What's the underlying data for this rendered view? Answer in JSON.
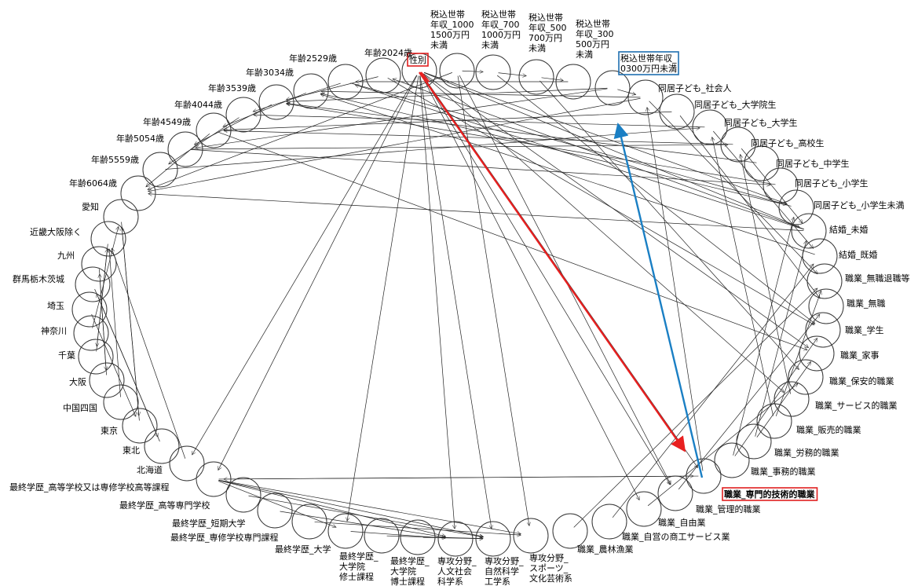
{
  "nodes": {
    "seibetsu": "性別",
    "inc1": [
      "税込世帯",
      "年収_1000",
      "1500万円",
      "未満"
    ],
    "inc2": [
      "税込世帯",
      "年収_700",
      "1000万円",
      "未満"
    ],
    "inc3": [
      "税込世帯",
      "年収_500",
      "700万円",
      "未満"
    ],
    "inc4": [
      "税込世帯",
      "年収_300",
      "500万円",
      "未満"
    ],
    "inc5": [
      "税込世帯年収_",
      "0300万円未満"
    ],
    "age2024": "年齢2024歳",
    "age2529": "年齢2529歳",
    "age3034": "年齢3034歳",
    "age3539": "年齢3539歳",
    "age4044": "年齢4044歳",
    "age4549": "年齢4549歳",
    "age5054": "年齢5054歳",
    "age5559": "年齢5559歳",
    "age6064": "年齢6064歳",
    "aichi": "愛知",
    "kinki": "近畿大阪除く",
    "kyushu": "九州",
    "kitakanto": "群馬栃木茨城",
    "saitama": "埼玉",
    "kanagawa": "神奈川",
    "chiba": "千葉",
    "osaka": "大阪",
    "chugoku": "中国四国",
    "tokyo": "東京",
    "tohoku": "東北",
    "hokkaido": "北海道",
    "edu_hs": "最終学歴_高等学校又は専修学校高等課程",
    "edu_sen": "最終学歴_高等専門学校",
    "edu_tan": "最終学歴_短期大学",
    "edu_senmon": "最終学歴_専修学校専門課程",
    "edu_dai": "最終学歴_大学",
    "edu_master": [
      "最終学歴_",
      "大学院",
      "修士課程"
    ],
    "edu_doctor": [
      "最終学歴_",
      "大学院",
      "博士課程"
    ],
    "major_hum": [
      "専攻分野_",
      "人文社会",
      "科学系"
    ],
    "major_sci": [
      "専攻分野_",
      "自然科学",
      "工学系"
    ],
    "major_art": [
      "専攻分野_",
      "スポーツ_",
      "文化芸術系"
    ],
    "kid_shakai": "同居子ども_社会人",
    "kid_in": "同居子ども_大学院生",
    "kid_dai": "同居子ども_大学生",
    "kid_ko": "同居子ども_高校生",
    "kid_chu": "同居子ども_中学生",
    "kid_sho": "同居子ども_小学生",
    "kid_mi": "同居子ども_小学生未満",
    "mikon": "結婚_未婚",
    "kikon": "結婚_既婚",
    "job_taishoku": "職業_無職退職等",
    "job_mushoku": "職業_無職",
    "job_gakusei": "職業_学生",
    "job_kaji": "職業_家事",
    "job_hoan": "職業_保安的職業",
    "job_service": "職業_サービス的職業",
    "job_hanbai": "職業_販売的職業",
    "job_romu": "職業_労務的職業",
    "job_jimu": "職業_事務的職業",
    "job_senmon": "職業_専門的技術的職業",
    "job_kanri": "職業_管理的職業",
    "job_jiyu": "職業_自由業",
    "job_jiei": "職業_自営の商工サービス業",
    "job_norin": "職業_農林漁業"
  },
  "highlights": {
    "red_box_color": "#e02020",
    "blue_box_color": "#1f6fb0",
    "red_arrow_color": "#e82020",
    "blue_arrow_color": "#1a7fc4"
  }
}
